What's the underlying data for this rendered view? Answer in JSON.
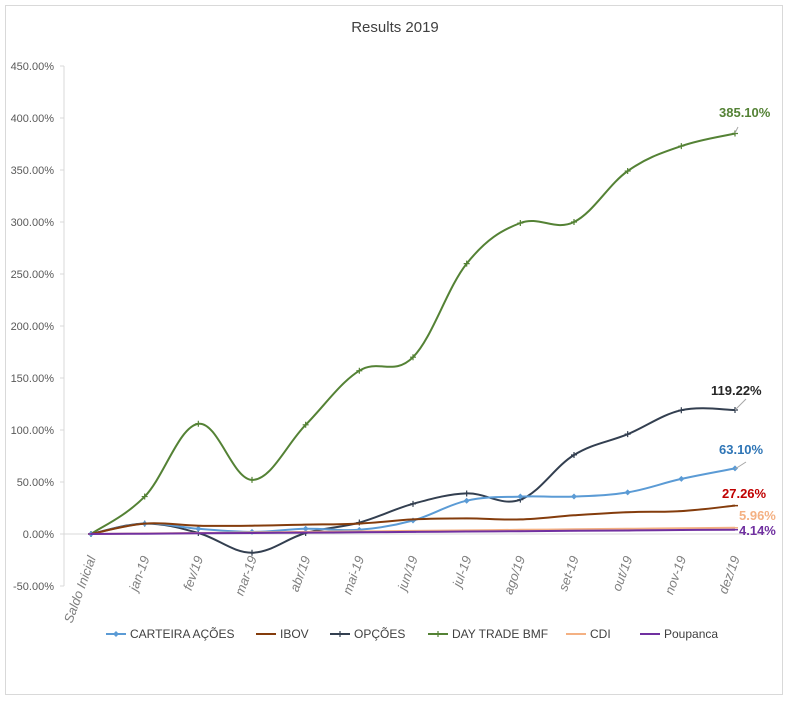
{
  "chart_data": {
    "type": "line",
    "title": "Results 2019",
    "xlabel": "",
    "ylabel": "",
    "ylim": [
      -50,
      450
    ],
    "y_ticks": [
      "-50.00%",
      "0.00%",
      "50.00%",
      "100.00%",
      "150.00%",
      "200.00%",
      "250.00%",
      "300.00%",
      "350.00%",
      "400.00%",
      "450.00%"
    ],
    "categories": [
      "Saldo Inicial",
      "jan-19",
      "fev/19",
      "mar-19",
      "abr/19",
      "mai-19",
      "jun/19",
      "jul-19",
      "ago/19",
      "set-19",
      "out/19",
      "nov-19",
      "dez/19"
    ],
    "grid": false,
    "legend_position": "bottom",
    "series": [
      {
        "name": "CARTEIRA AÇÕES",
        "color": "#5b9bd5",
        "marker": "diamond",
        "values": [
          0,
          10,
          5,
          2,
          5,
          4,
          13,
          32,
          36,
          36,
          40,
          53,
          63.1
        ],
        "end_label": "63.10%",
        "label_color": "#2e75b6"
      },
      {
        "name": "IBOV",
        "color": "#843c0c",
        "marker": "dash",
        "values": [
          0,
          10,
          8,
          8,
          9,
          10,
          14,
          15,
          14,
          18,
          21,
          22,
          27.26
        ],
        "end_label": "27.26%",
        "label_color": "#c00000"
      },
      {
        "name": "OPÇÕES",
        "color": "#333f50",
        "marker": "plus",
        "values": [
          0,
          10,
          1,
          -18,
          1,
          11,
          29,
          39,
          33,
          76,
          96,
          119,
          119.22
        ],
        "end_label": "119.22%",
        "label_color": "#262626"
      },
      {
        "name": "DAY TRADE BMF",
        "color": "#548235",
        "marker": "plus",
        "values": [
          0,
          36,
          106,
          52,
          105,
          157,
          170,
          260,
          299,
          300,
          349,
          373,
          385.1
        ],
        "end_label": "385.10%",
        "label_color": "#548235"
      },
      {
        "name": "CDI",
        "color": "#f4b183",
        "marker": "dash",
        "values": [
          0,
          0.5,
          1,
          1.5,
          2,
          2.5,
          3,
          3.5,
          4,
          4.5,
          5,
          5.5,
          5.96
        ],
        "end_label": "5.96%",
        "label_color": "#f4b183"
      },
      {
        "name": "Poupanca",
        "color": "#7030a0",
        "marker": "dash",
        "values": [
          0,
          0.3,
          0.7,
          1.0,
          1.3,
          1.7,
          2.0,
          2.4,
          2.7,
          3.1,
          3.4,
          3.8,
          4.14
        ],
        "end_label": "4.14%",
        "label_color": "#7030a0"
      }
    ]
  }
}
